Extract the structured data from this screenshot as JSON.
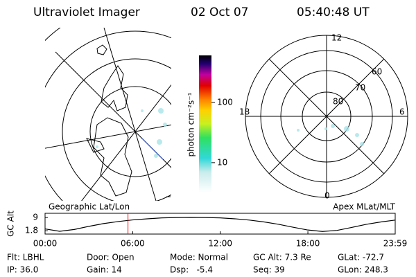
{
  "header": {
    "title": "Ultraviolet Imager",
    "date": "02 Oct 07",
    "time": "05:40:48 UT"
  },
  "left_map": {
    "label": "Geographic Lat/Lon"
  },
  "right_map": {
    "label": "Apex MLat/MLT",
    "mlt_labels": [
      "12",
      "18",
      "6",
      "0"
    ],
    "lat_labels": [
      "60",
      "70",
      "80"
    ]
  },
  "colorbar": {
    "label": "photon cm⁻²s⁻¹",
    "log_scale": true,
    "lim": [
      3.2,
      600
    ],
    "ticks": [
      10,
      100
    ]
  },
  "chart_data": {
    "type": "line",
    "ylabel": "GC Alt",
    "x": [
      0,
      1,
      2,
      3,
      4,
      5,
      6,
      7,
      8,
      9,
      10,
      11,
      12,
      13,
      14,
      15,
      16,
      17,
      18,
      19,
      20,
      21,
      22,
      23,
      23.98
    ],
    "values": [
      2.8,
      1.5,
      2.5,
      4.2,
      5.7,
      6.8,
      7.7,
      8.3,
      8.8,
      9.0,
      9.1,
      9.0,
      8.8,
      8.3,
      7.6,
      6.6,
      5.3,
      3.7,
      2.2,
      1.4,
      2.0,
      3.6,
      5.3,
      6.6,
      7.6
    ],
    "color": "#000000",
    "marker_x": 5.68,
    "marker_color": "#ff0000",
    "xlim": [
      0,
      23.98
    ],
    "xticks": [
      {
        "value": 0,
        "label": "00:00"
      },
      {
        "value": 6,
        "label": "06:00"
      },
      {
        "value": 12,
        "label": "12:00"
      },
      {
        "value": 18,
        "label": "18:00"
      },
      {
        "value": 23.98,
        "label": "23:59"
      }
    ],
    "ylim": [
      0,
      11.3
    ],
    "yticks": [
      9.0,
      1.8
    ]
  },
  "footer": {
    "rows": [
      [
        "Flt: LBHL",
        "Door: Open",
        "Mode: Normal",
        "GC Alt: 7.3 Re",
        "GLat: -72.7"
      ],
      [
        "IP: 36.0",
        "Gain: 14",
        "Dsp:   -5.4",
        "Seq: 39",
        "GLon: 248.3"
      ]
    ]
  }
}
